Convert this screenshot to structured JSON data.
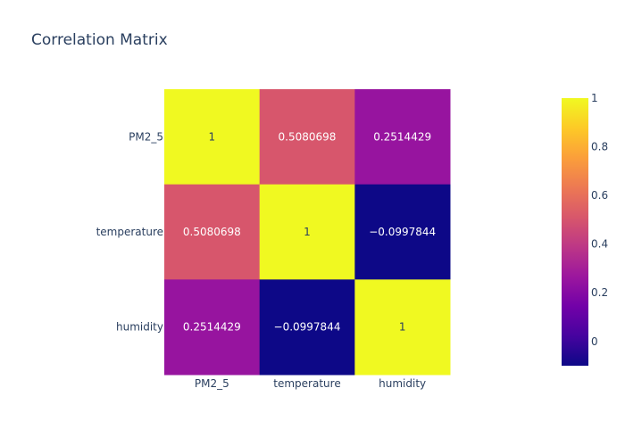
{
  "chart_data": {
    "type": "heatmap",
    "title": "Correlation Matrix",
    "x": [
      "PM2_5",
      "temperature",
      "humidity"
    ],
    "y": [
      "PM2_5",
      "temperature",
      "humidity"
    ],
    "z": [
      [
        1,
        0.5080698,
        0.2514429
      ],
      [
        0.5080698,
        1,
        -0.0997844
      ],
      [
        0.2514429,
        -0.0997844,
        1
      ]
    ],
    "z_text": [
      [
        "1",
        "0.5080698",
        "0.2514429"
      ],
      [
        "0.5080698",
        "1",
        "−0.0997844"
      ],
      [
        "0.2514429",
        "−0.0997844",
        "1"
      ]
    ],
    "zmin": -0.0997844,
    "zmax": 1,
    "colorscale": [
      "#0d0887",
      "#46039f",
      "#7201a8",
      "#9c179e",
      "#bd3786",
      "#d8576b",
      "#ed7953",
      "#fb9f3a",
      "#fdca26",
      "#f0f921"
    ],
    "colorbar": {
      "ticks": [
        0,
        0.2,
        0.4,
        0.6,
        0.8,
        1
      ],
      "tick_labels": [
        "0",
        "0.2",
        "0.4",
        "0.6",
        "0.8",
        "1"
      ]
    },
    "colors": {
      "title": "#2a3f5f",
      "axis_text": "#2a3f5f",
      "cell_text_dark": "#2a3f5f",
      "cell_text_light": "#ffffff"
    }
  }
}
